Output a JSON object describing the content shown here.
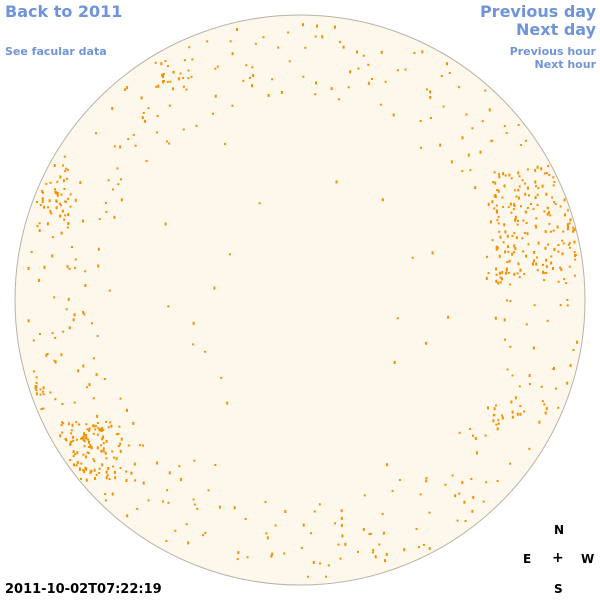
{
  "nav": {
    "back": "Back to 2011",
    "facular": "See facular data",
    "prev_day": "Previous day",
    "next_day": "Next day",
    "prev_hour": "Previous hour",
    "next_hour": "Next hour"
  },
  "timestamp": "2011-10-02T07:22:19",
  "compass": {
    "north": "N",
    "east": "E",
    "center": "+",
    "west": "W",
    "south": "S"
  },
  "colors": {
    "link": "#6f94da",
    "disk_fill": "#fef8ec",
    "disk_edge": "#b9b3a6",
    "feature": "#f39000"
  }
}
